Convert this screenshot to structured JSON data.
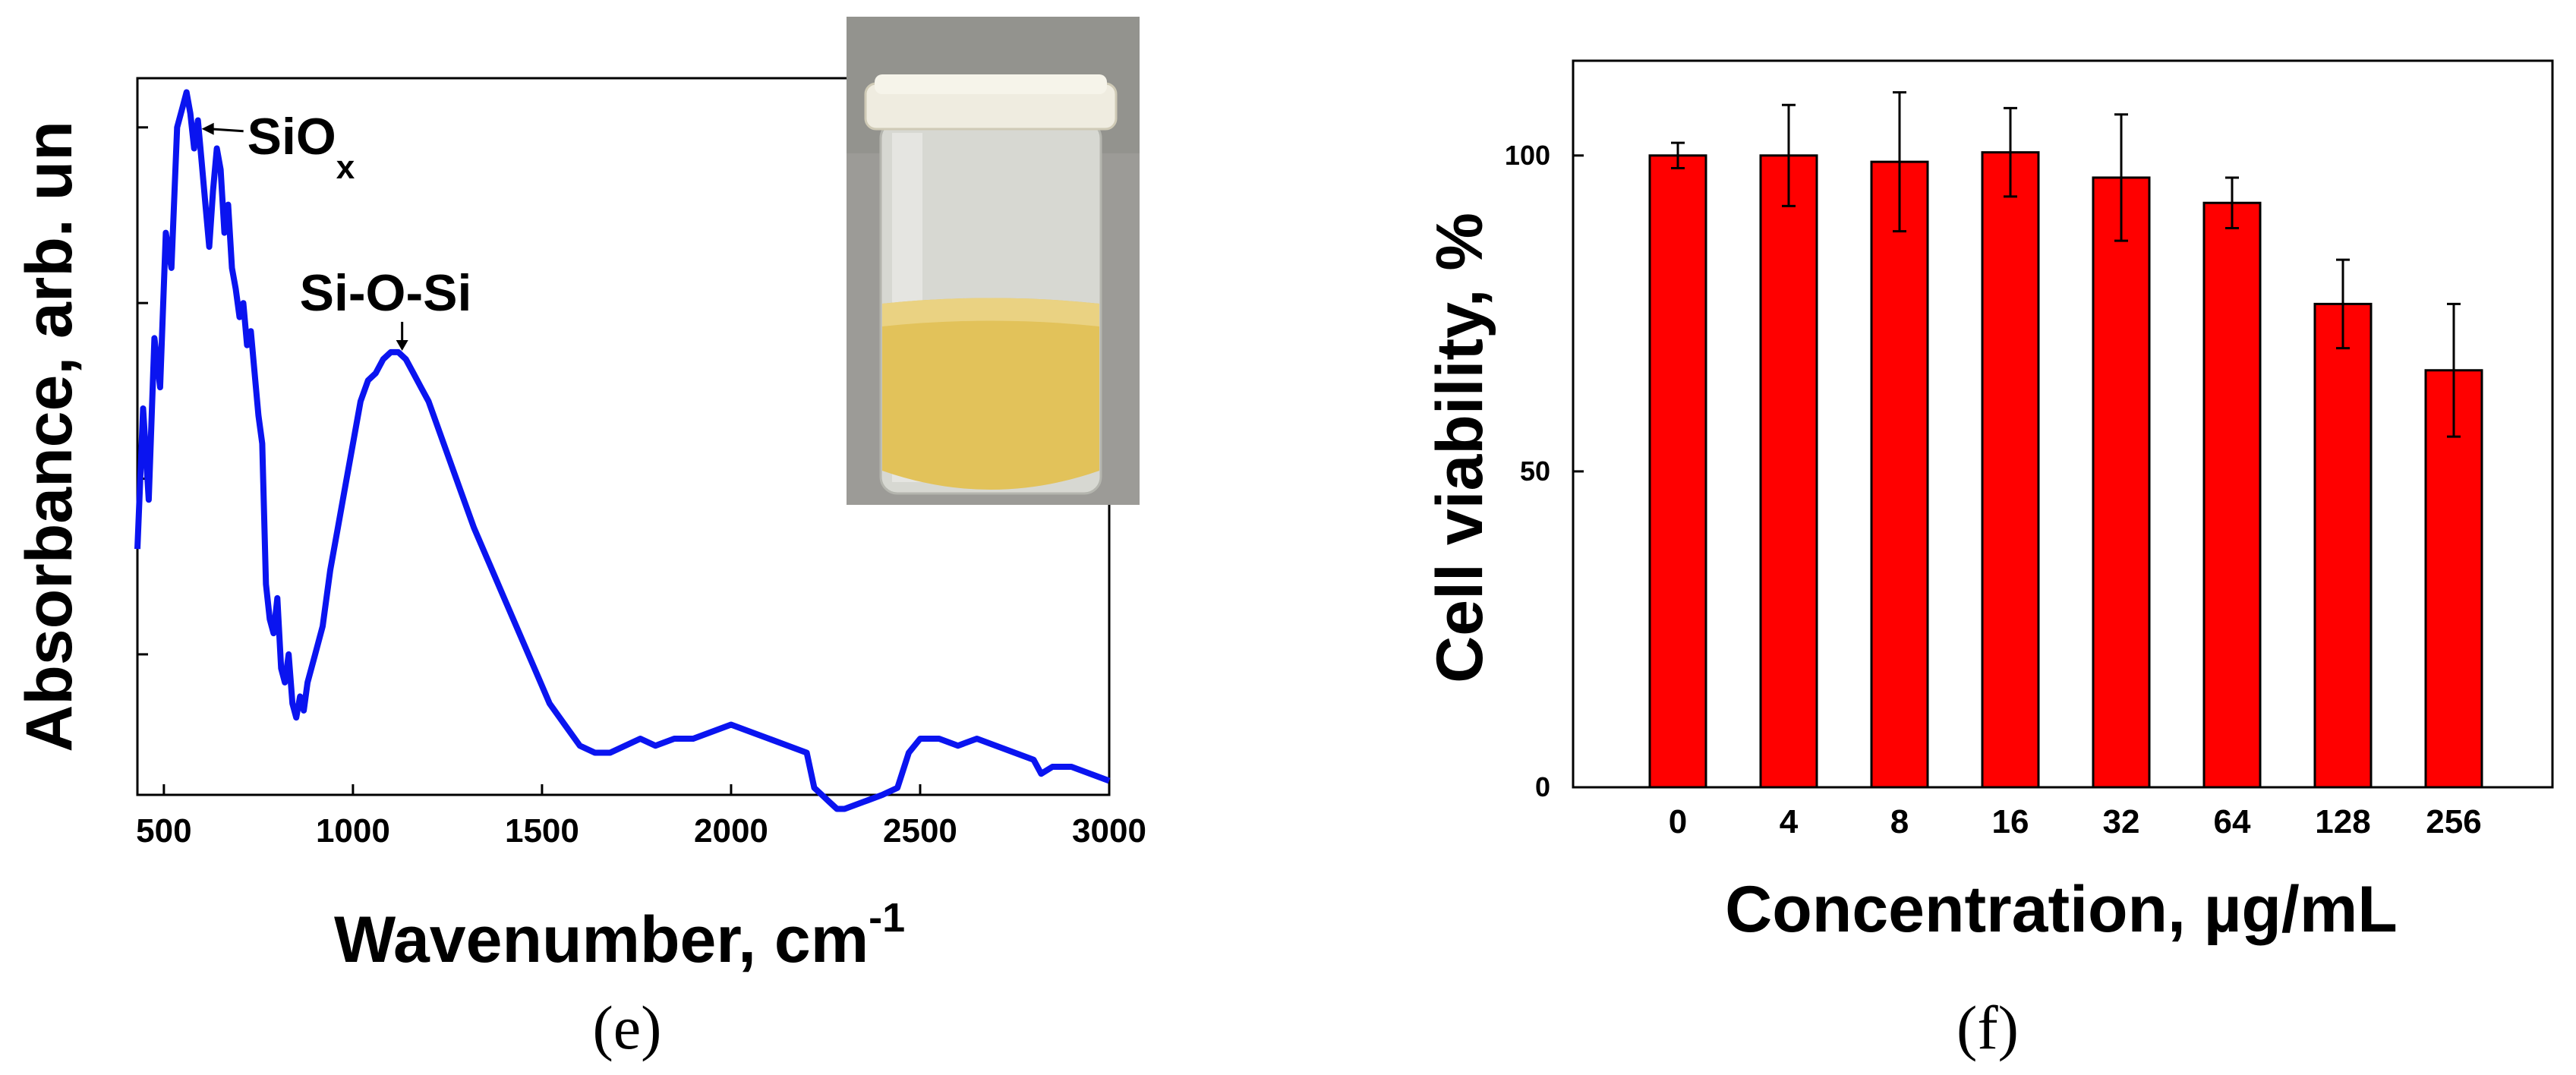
{
  "chart_data": [
    {
      "panel": "(e)",
      "type": "line",
      "xlabel": "Wavenumber, cm",
      "xlabel_sup": "-1",
      "ylabel": "Absorbance, arb. un",
      "xlim": [
        430,
        3000
      ],
      "ylim": [
        0.3,
        1.32
      ],
      "xticks": [
        500,
        1000,
        1500,
        2000,
        2500,
        3000
      ],
      "yticks": [
        0.5,
        0.75,
        1.0,
        1.25
      ],
      "grid": false,
      "annotations": [
        {
          "text": "SiO",
          "sub": "x",
          "x": 600,
          "y": 1.25
        },
        {
          "text": "Si-O-Si",
          "x": 1120,
          "y": 0.93
        }
      ],
      "inset": "photo of a glass vial containing yellow liquid",
      "series": [
        {
          "color": "#0a14f0",
          "x": [
            430,
            445,
            460,
            475,
            490,
            505,
            520,
            535,
            550,
            560,
            570,
            580,
            590,
            600,
            610,
            620,
            630,
            640,
            650,
            660,
            670,
            680,
            690,
            700,
            710,
            720,
            730,
            740,
            750,
            760,
            770,
            780,
            790,
            800,
            810,
            820,
            830,
            840,
            850,
            860,
            870,
            880,
            900,
            920,
            940,
            960,
            980,
            1000,
            1020,
            1040,
            1060,
            1080,
            1100,
            1120,
            1140,
            1160,
            1180,
            1200,
            1240,
            1280,
            1320,
            1360,
            1400,
            1440,
            1480,
            1520,
            1560,
            1600,
            1640,
            1680,
            1720,
            1760,
            1800,
            1850,
            1900,
            1950,
            2000,
            2050,
            2100,
            2150,
            2200,
            2220,
            2240,
            2260,
            2280,
            2300,
            2350,
            2400,
            2440,
            2470,
            2500,
            2550,
            2600,
            2650,
            2700,
            2750,
            2800,
            2820,
            2850,
            2900,
            2950,
            3000
          ],
          "y": [
            0.65,
            0.85,
            0.72,
            0.95,
            0.88,
            1.1,
            1.05,
            1.25,
            1.28,
            1.3,
            1.27,
            1.22,
            1.26,
            1.2,
            1.14,
            1.08,
            1.16,
            1.22,
            1.19,
            1.1,
            1.14,
            1.05,
            1.02,
            0.98,
            1.0,
            0.94,
            0.96,
            0.9,
            0.84,
            0.8,
            0.6,
            0.55,
            0.53,
            0.58,
            0.48,
            0.46,
            0.5,
            0.43,
            0.41,
            0.44,
            0.42,
            0.46,
            0.5,
            0.54,
            0.62,
            0.68,
            0.74,
            0.8,
            0.86,
            0.89,
            0.9,
            0.92,
            0.93,
            0.93,
            0.92,
            0.9,
            0.88,
            0.86,
            0.8,
            0.74,
            0.68,
            0.63,
            0.58,
            0.53,
            0.48,
            0.43,
            0.4,
            0.37,
            0.36,
            0.36,
            0.37,
            0.38,
            0.37,
            0.38,
            0.38,
            0.39,
            0.4,
            0.39,
            0.38,
            0.37,
            0.36,
            0.31,
            0.3,
            0.29,
            0.28,
            0.28,
            0.29,
            0.3,
            0.31,
            0.36,
            0.38,
            0.38,
            0.37,
            0.38,
            0.37,
            0.36,
            0.35,
            0.33,
            0.34,
            0.34,
            0.33,
            0.32
          ]
        }
      ]
    },
    {
      "panel": "(f)",
      "type": "bar",
      "xlabel": "Concentration, µg/mL",
      "ylabel": "Cell viability, %",
      "categories": [
        "0",
        "4",
        "8",
        "16",
        "32",
        "64",
        "128",
        "256"
      ],
      "values": [
        100,
        100,
        99,
        100.5,
        96.5,
        92.5,
        76.5,
        66
      ],
      "errors": [
        2,
        8,
        11,
        7,
        10,
        4,
        7,
        10.5
      ],
      "ylim": [
        0,
        115
      ],
      "yticks": [
        0,
        50,
        100
      ],
      "bar_color": "#ff0000",
      "grid": false
    }
  ]
}
